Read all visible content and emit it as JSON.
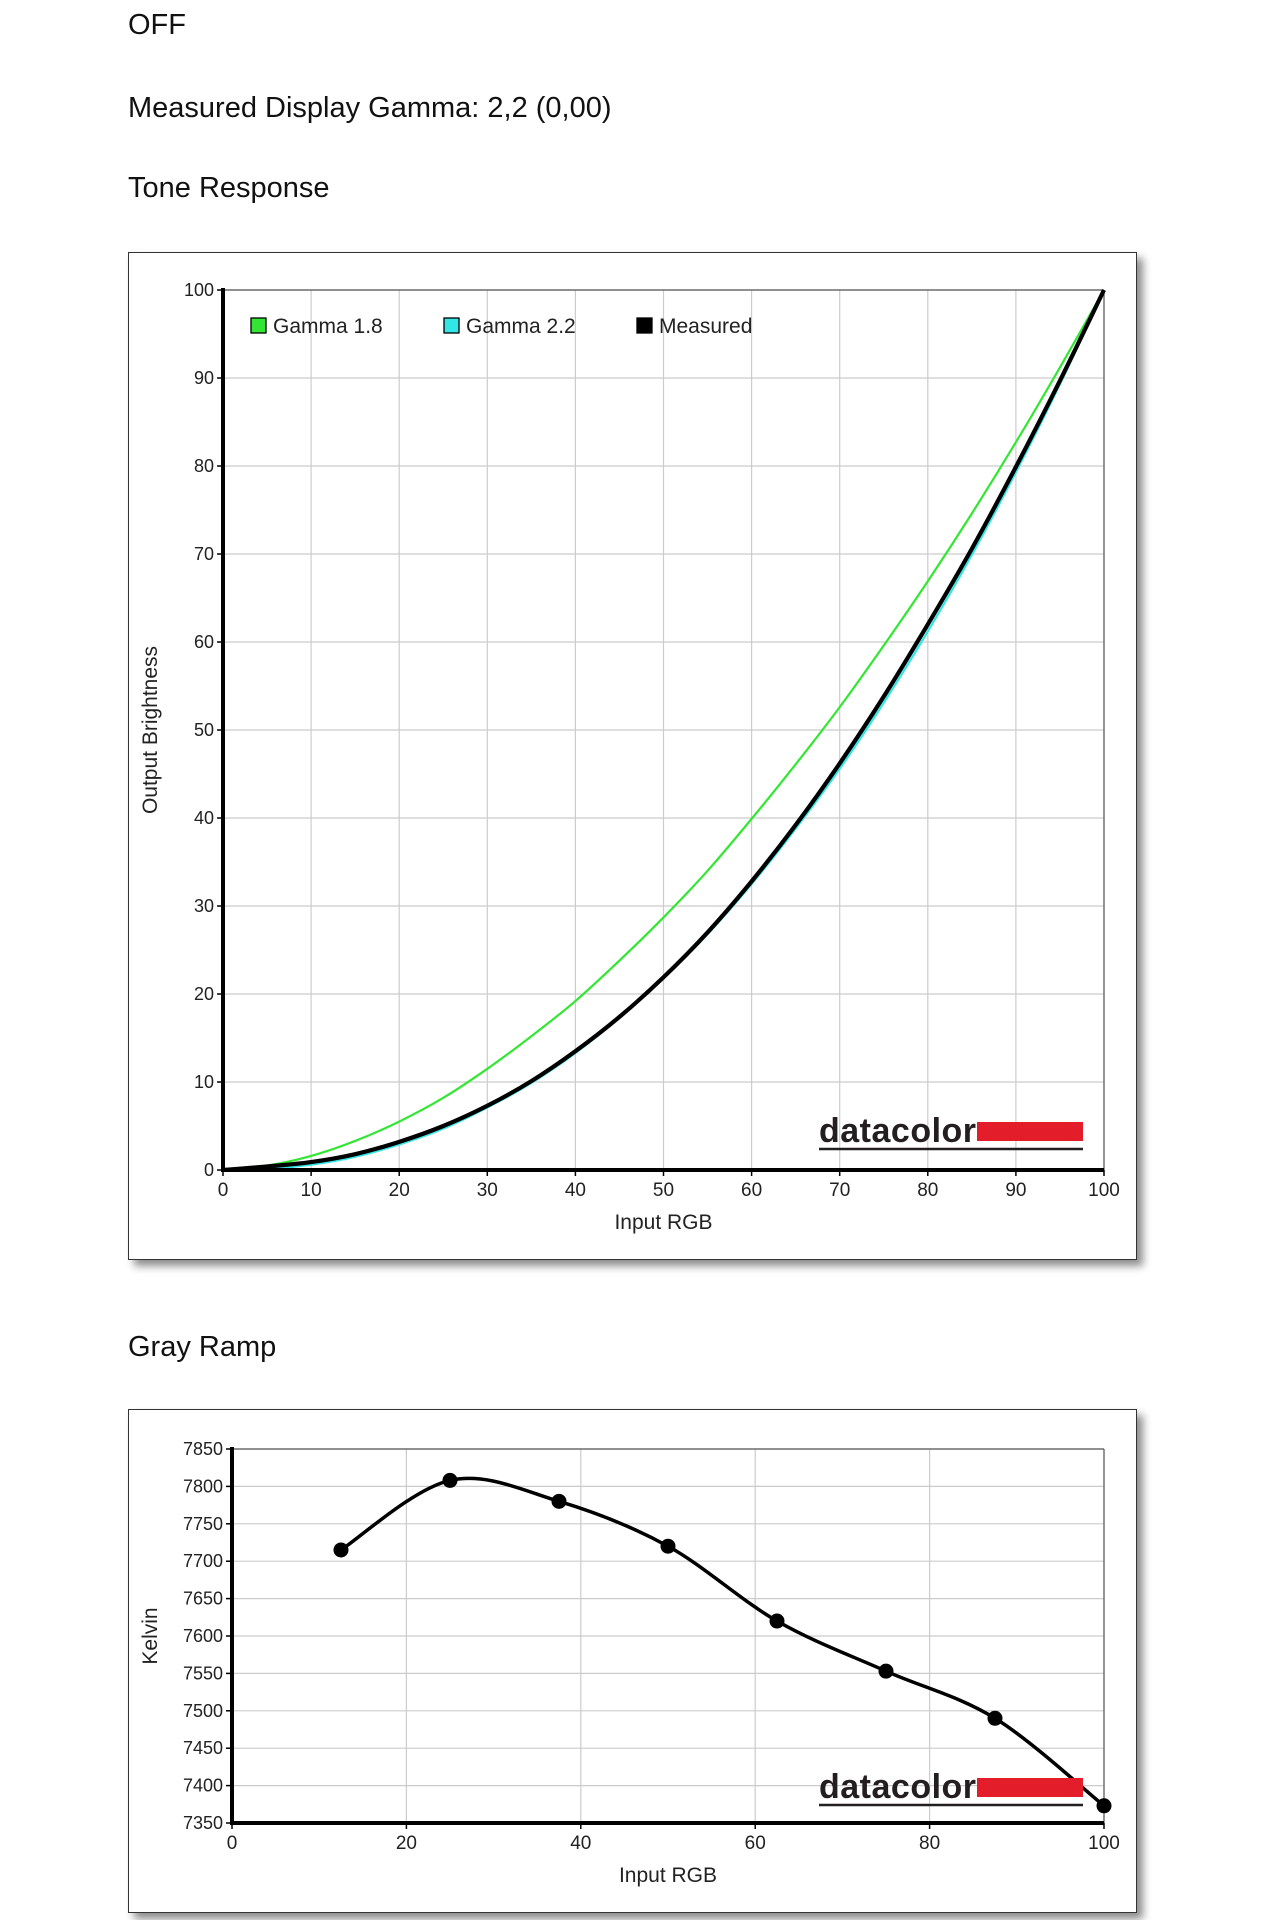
{
  "page": {
    "status_text": "OFF",
    "gamma_line": "Measured Display Gamma: 2,2 (0,00)",
    "tone_heading": "Tone Response",
    "gray_heading": "Gray Ramp",
    "logo_text": "datacolor"
  },
  "colors": {
    "gamma18": "#33e633",
    "gamma22": "#33e6e6",
    "measured": "#000000",
    "logo_red": "#e31e2a",
    "grid": "#cccccc"
  },
  "chart_data": [
    {
      "type": "line",
      "xlabel": "Input RGB",
      "ylabel": "Output Brightness",
      "xlim": [
        0,
        100
      ],
      "ylim": [
        0,
        100
      ],
      "xticks": [
        "0",
        "10",
        "20",
        "30",
        "40",
        "50",
        "60",
        "70",
        "80",
        "90",
        "100"
      ],
      "yticks": [
        "0",
        "10",
        "20",
        "30",
        "40",
        "50",
        "60",
        "70",
        "80",
        "90",
        "100"
      ],
      "grid": true,
      "legend": "top-left",
      "series": [
        {
          "name": "Gamma 1.8",
          "color": "#33e633",
          "gamma": 1.8,
          "x": [
            0,
            5,
            10,
            15,
            20,
            25,
            30,
            35,
            40,
            45,
            50,
            55,
            60,
            65,
            70,
            75,
            80,
            85,
            90,
            95,
            100
          ],
          "y": [
            0,
            0.5,
            1.6,
            3.3,
            5.5,
            8.2,
            11.5,
            15.2,
            19.2,
            23.8,
            28.7,
            34,
            39.9,
            46.1,
            52.6,
            59.6,
            66.9,
            74.6,
            82.7,
            91.2,
            100
          ]
        },
        {
          "name": "Gamma 2.2",
          "color": "#33e6e6",
          "gamma": 2.2,
          "x": [
            0,
            5,
            10,
            15,
            20,
            25,
            30,
            35,
            40,
            45,
            50,
            55,
            60,
            65,
            70,
            75,
            80,
            85,
            90,
            95,
            100
          ],
          "y": [
            0,
            0.1,
            0.6,
            1.5,
            2.9,
            4.7,
            7.1,
            9.9,
            13.3,
            17.3,
            21.8,
            26.8,
            32.5,
            38.8,
            45.6,
            53.1,
            61.2,
            69.9,
            79.3,
            89.3,
            100
          ]
        },
        {
          "name": "Measured",
          "color": "#000000",
          "x": [
            0,
            5,
            10,
            15,
            20,
            25,
            30,
            35,
            40,
            45,
            50,
            55,
            60,
            65,
            70,
            75,
            80,
            85,
            90,
            95,
            100
          ],
          "y": [
            0,
            0.4,
            0.9,
            1.8,
            3.2,
            5,
            7.3,
            10.1,
            13.5,
            17.4,
            21.9,
            27,
            32.8,
            39.2,
            46.2,
            53.8,
            62,
            70.6,
            79.9,
            89.7,
            100
          ]
        }
      ]
    },
    {
      "type": "line",
      "xlabel": "Input RGB",
      "ylabel": "Kelvin",
      "xlim": [
        0,
        100
      ],
      "ylim": [
        7350,
        7850
      ],
      "xticks": [
        "0",
        "20",
        "40",
        "60",
        "80",
        "100"
      ],
      "yticks": [
        "7350",
        "7400",
        "7450",
        "7500",
        "7550",
        "7600",
        "7650",
        "7700",
        "7750",
        "7800",
        "7850"
      ],
      "grid": true,
      "series": [
        {
          "color": "#000000",
          "x": [
            12.5,
            25,
            37.5,
            50,
            62.5,
            75,
            87.5,
            100
          ],
          "y": [
            7715,
            7808,
            7780,
            7720,
            7620,
            7553,
            7490,
            7373
          ]
        }
      ]
    }
  ]
}
